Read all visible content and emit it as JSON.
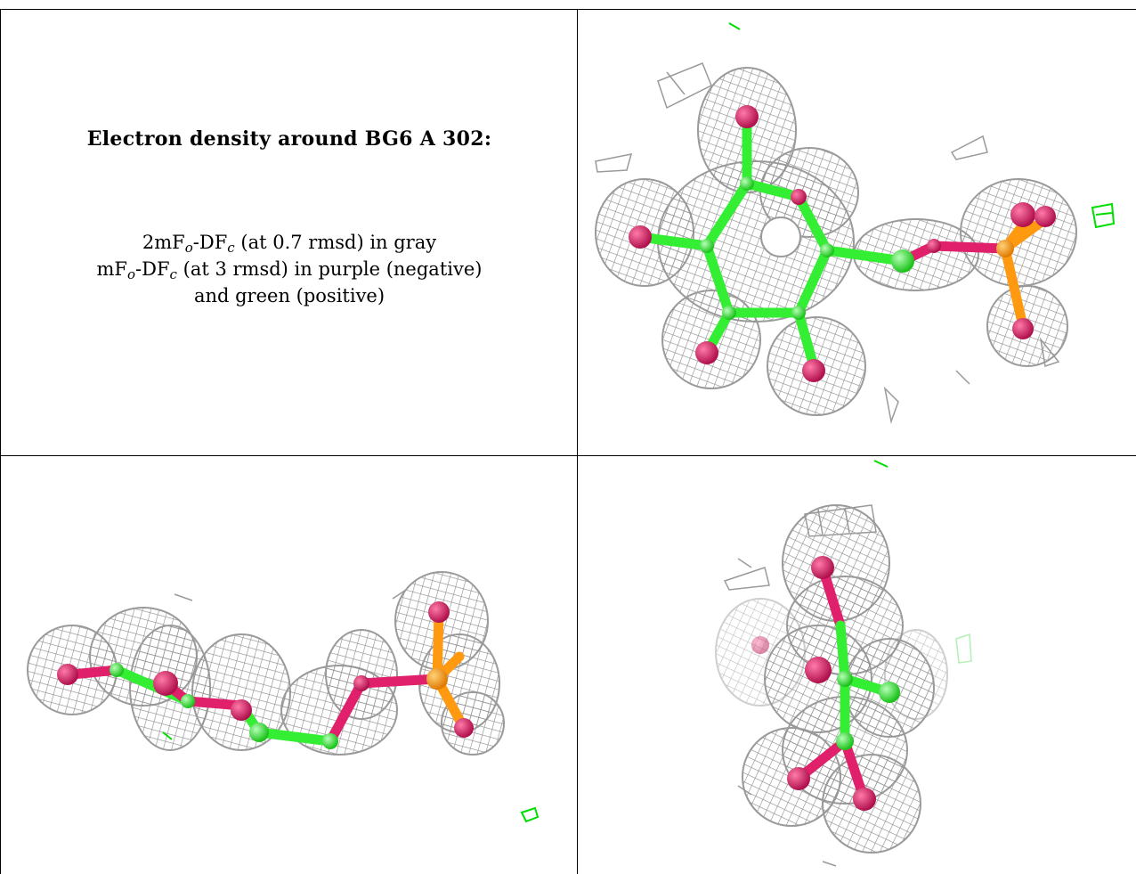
{
  "panel_text": {
    "title": "Electron density around BG6 A 302:",
    "line1_prefix": "2mF",
    "line1_sub1": "o",
    "line1_mid": "-DF",
    "line1_sub2": "c",
    "line1_suffix": " (at 0.7 rmsd) in gray",
    "line2_prefix": "mF",
    "line2_sub1": "o",
    "line2_mid": "-DF",
    "line2_sub2": "c",
    "line2_suffix": " (at 3 rmsd) in purple (negative)",
    "line3": "and green (positive)"
  },
  "colors": {
    "mesh_gray": "#9a9a9a",
    "carbon_green": "#33ee33",
    "oxygen_red": "#e0206a",
    "phosphorus_orange": "#ff9a10",
    "positive_density_green": "#00dd00"
  },
  "views": [
    {
      "name": "top-view",
      "icon": "molecule-density-render"
    },
    {
      "name": "side-view",
      "icon": "molecule-density-render"
    },
    {
      "name": "end-view",
      "icon": "molecule-density-render"
    }
  ]
}
